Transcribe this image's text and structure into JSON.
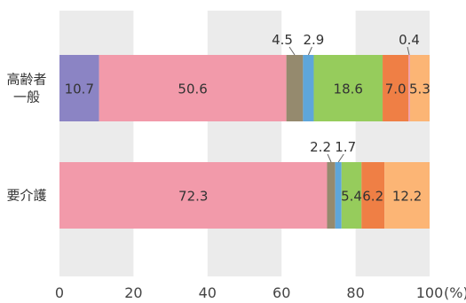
{
  "chart_data": {
    "type": "bar",
    "orientation": "horizontal",
    "stacked": true,
    "xlim": [
      0,
      100
    ],
    "x_ticks": [
      "0",
      "20",
      "40",
      "60",
      "80",
      "100"
    ],
    "x_unit": "(%)",
    "grid": "alternating bands",
    "categories": [
      {
        "label_lines": [
          "高齢者",
          "一般"
        ]
      },
      {
        "label_lines": [
          "要介護"
        ]
      }
    ],
    "segment_colors": [
      "#8b84c4",
      "#f29aaa",
      "#958a6e",
      "#5ea6da",
      "#96cc5c",
      "#ef7f45",
      "#f29aaa",
      "#fcb575"
    ],
    "rows": [
      {
        "values": [
          10.7,
          50.6,
          4.5,
          2.9,
          18.6,
          7.0,
          0.4,
          5.3
        ],
        "labels": [
          "10.7",
          "50.6",
          "4.5",
          "2.9",
          "18.6",
          "7.0",
          "0.4",
          "5.3"
        ]
      },
      {
        "values": [
          0,
          72.3,
          2.2,
          1.7,
          5.4,
          6.2,
          0,
          12.2
        ],
        "labels": [
          "",
          "72.3",
          "2.2",
          "1.7",
          "5.4",
          "6.2",
          "",
          "12.2"
        ]
      }
    ]
  }
}
